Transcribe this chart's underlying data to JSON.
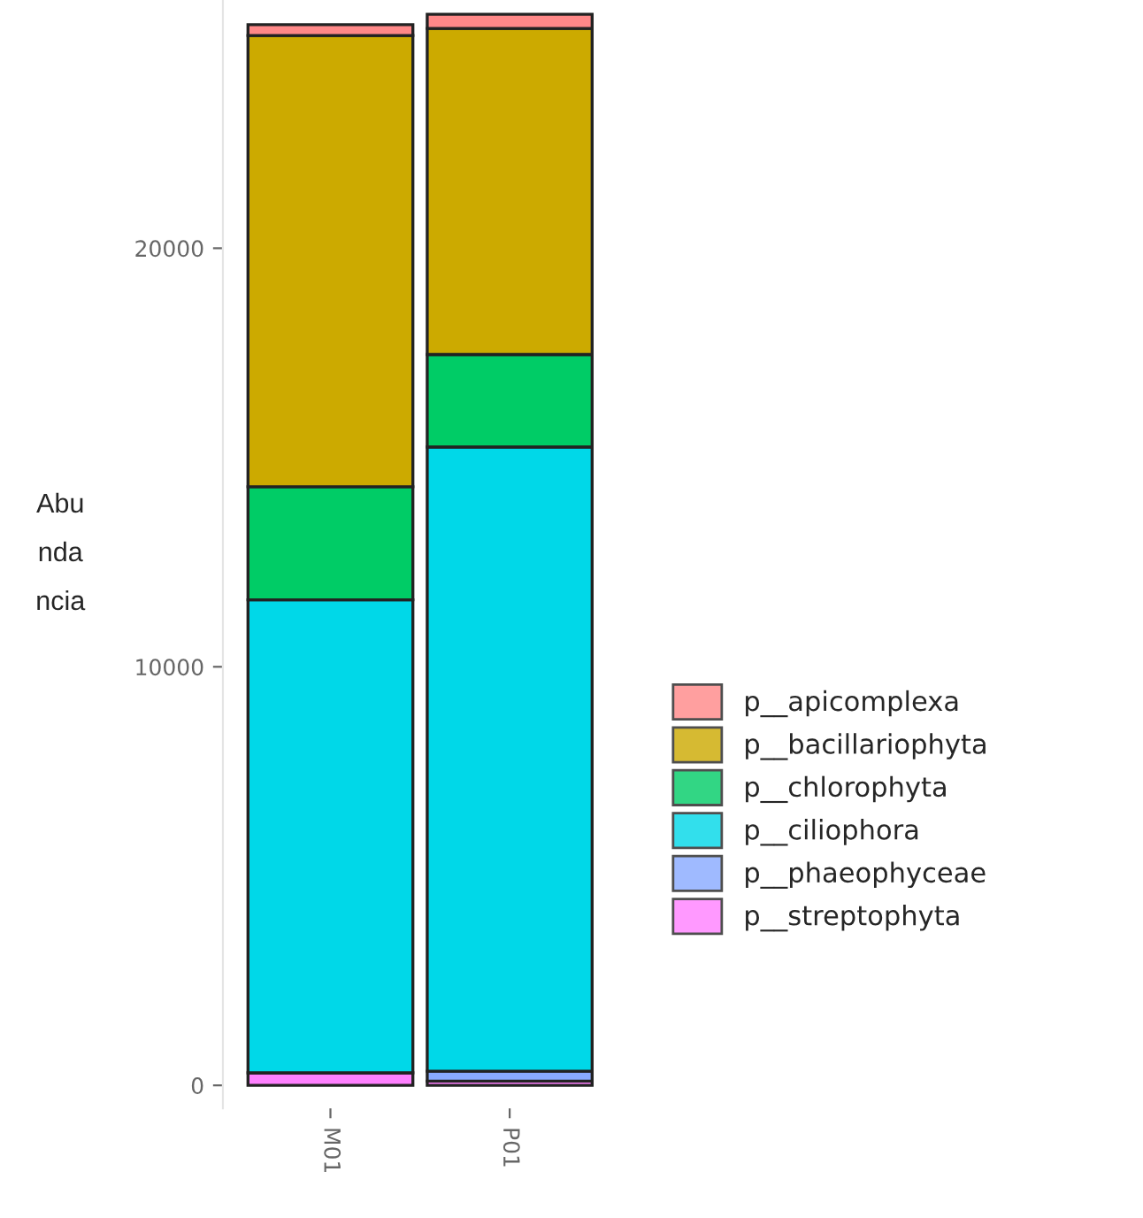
{
  "chart_data": {
    "type": "bar",
    "stacked": true,
    "ylabel": "Abu\nnda\nncia",
    "categories": [
      "M01",
      "P01"
    ],
    "series": [
      {
        "name": "p__streptophyta",
        "color": "#ff80ff",
        "values": [
          300,
          100
        ]
      },
      {
        "name": "p__phaeophyceae",
        "color": "#88aaff",
        "values": [
          0,
          240
        ]
      },
      {
        "name": "p__ciliophora",
        "color": "#00d8e8",
        "values": [
          11300,
          14910
        ]
      },
      {
        "name": "p__chlorophyta",
        "color": "#00cc66",
        "values": [
          2700,
          2210
        ]
      },
      {
        "name": "p__bacillariophyta",
        "color": "#ccaa00",
        "values": [
          10780,
          7790
        ]
      },
      {
        "name": "p__apicomplexa",
        "color": "#ff8888",
        "values": [
          260,
          340
        ]
      }
    ],
    "ylim": [
      -550,
      25930
    ],
    "yticks": [
      0,
      10000,
      20000
    ],
    "grid": false,
    "legend": "right"
  }
}
